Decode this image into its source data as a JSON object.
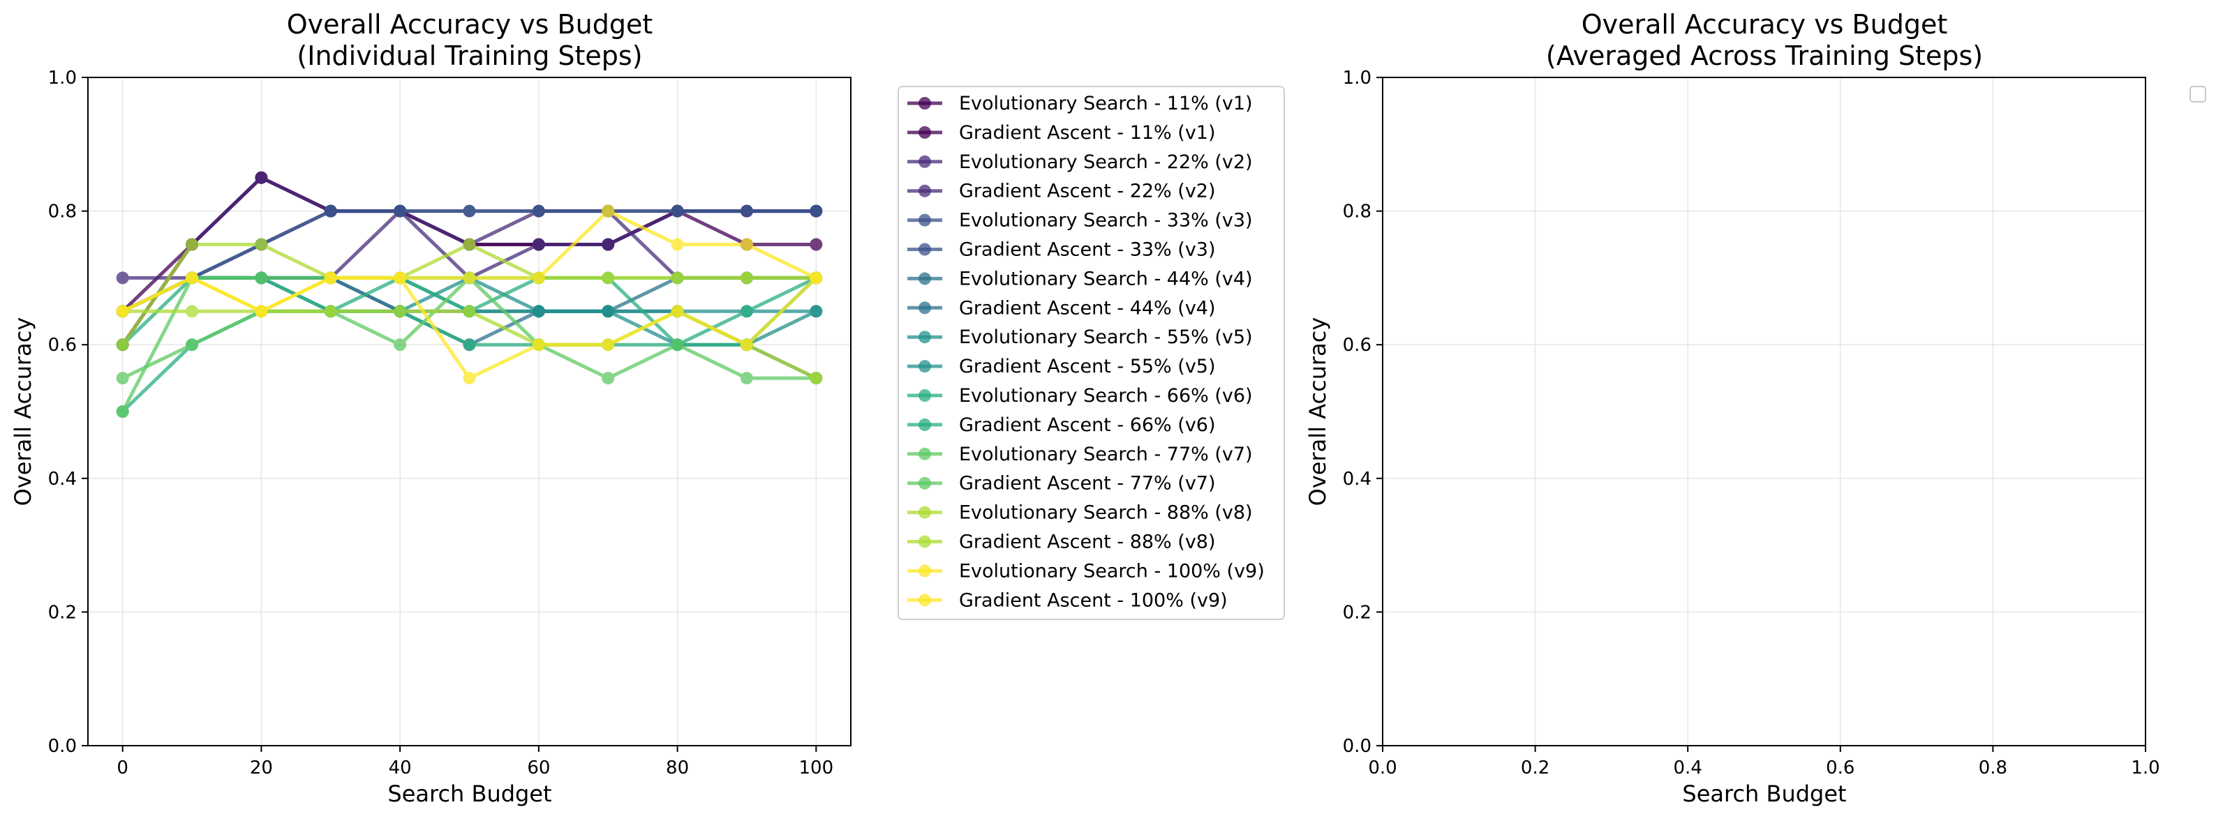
{
  "chart_data": [
    {
      "type": "line",
      "title_lines": [
        "Overall Accuracy vs Budget",
        "(Individual Training Steps)"
      ],
      "xlabel": "Search Budget",
      "ylabel": "Overall Accuracy",
      "xlim": [
        -5,
        105
      ],
      "ylim": [
        0.0,
        1.0
      ],
      "xticks": [
        "0",
        "20",
        "40",
        "60",
        "80",
        "100"
      ],
      "yticks": [
        "0.0",
        "0.2",
        "0.4",
        "0.6",
        "0.8",
        "1.0"
      ],
      "grid": true,
      "legend_position": "outside right",
      "x": [
        0,
        10,
        20,
        30,
        40,
        50,
        60,
        70,
        80,
        90,
        100
      ],
      "series": [
        {
          "name": "Evolutionary Search - 11% (v1)",
          "color": "#440154",
          "values": [
            0.65,
            0.75,
            0.85,
            0.8,
            0.8,
            0.75,
            0.75,
            0.75,
            0.8,
            0.75,
            0.75
          ]
        },
        {
          "name": "Gradient Ascent - 11% (v1)",
          "color": "#440154",
          "values": [
            0.6,
            0.75,
            0.85,
            0.8,
            0.8,
            0.75,
            0.75,
            0.75,
            0.8,
            0.8,
            0.8
          ]
        },
        {
          "name": "Evolutionary Search - 22% (v2)",
          "color": "#472d7b",
          "values": [
            0.7,
            0.7,
            0.7,
            0.7,
            0.8,
            0.75,
            0.8,
            0.8,
            0.7,
            0.7,
            0.7
          ]
        },
        {
          "name": "Gradient Ascent - 22% (v2)",
          "color": "#472d7b",
          "values": [
            0.6,
            0.75,
            0.85,
            0.8,
            0.8,
            0.7,
            0.75,
            0.75,
            0.8,
            0.8,
            0.8
          ]
        },
        {
          "name": "Evolutionary Search - 33% (v3)",
          "color": "#3b528b",
          "values": [
            0.65,
            0.7,
            0.75,
            0.8,
            0.8,
            0.8,
            0.8,
            0.8,
            0.8,
            0.8,
            0.8
          ]
        },
        {
          "name": "Gradient Ascent - 33% (v3)",
          "color": "#3b528b",
          "values": [
            0.65,
            0.7,
            0.75,
            0.8,
            0.8,
            0.8,
            0.8,
            0.8,
            0.8,
            0.8,
            0.8
          ]
        },
        {
          "name": "Evolutionary Search - 44% (v4)",
          "color": "#2c728e",
          "values": [
            0.65,
            0.7,
            0.7,
            0.7,
            0.65,
            0.65,
            0.65,
            0.65,
            0.7,
            0.7,
            0.7
          ]
        },
        {
          "name": "Gradient Ascent - 44% (v4)",
          "color": "#2c728e",
          "values": [
            0.65,
            0.7,
            0.7,
            0.7,
            0.65,
            0.6,
            0.65,
            0.65,
            0.65,
            0.6,
            0.55
          ]
        },
        {
          "name": "Evolutionary Search - 55% (v5)",
          "color": "#21918c",
          "values": [
            0.65,
            0.7,
            0.7,
            0.65,
            0.65,
            0.7,
            0.65,
            0.65,
            0.65,
            0.65,
            0.65
          ]
        },
        {
          "name": "Gradient Ascent - 55% (v5)",
          "color": "#21918c",
          "values": [
            0.65,
            0.7,
            0.7,
            0.7,
            0.7,
            0.65,
            0.65,
            0.65,
            0.6,
            0.6,
            0.65
          ]
        },
        {
          "name": "Evolutionary Search - 66% (v6)",
          "color": "#28ae80",
          "values": [
            0.6,
            0.7,
            0.7,
            0.65,
            0.7,
            0.65,
            0.7,
            0.7,
            0.6,
            0.65,
            0.7
          ]
        },
        {
          "name": "Gradient Ascent - 66% (v6)",
          "color": "#28ae80",
          "values": [
            0.5,
            0.6,
            0.65,
            0.65,
            0.65,
            0.6,
            0.6,
            0.6,
            0.6,
            0.6,
            0.7
          ]
        },
        {
          "name": "Evolutionary Search - 77% (v7)",
          "color": "#5ec962",
          "values": [
            0.5,
            0.7,
            0.7,
            0.7,
            0.7,
            0.7,
            0.7,
            0.7,
            0.7,
            0.7,
            0.7
          ]
        },
        {
          "name": "Gradient Ascent - 77% (v7)",
          "color": "#5ec962",
          "values": [
            0.55,
            0.6,
            0.65,
            0.65,
            0.6,
            0.7,
            0.6,
            0.55,
            0.6,
            0.55,
            0.55
          ]
        },
        {
          "name": "Evolutionary Search - 88% (v8)",
          "color": "#addc30",
          "values": [
            0.6,
            0.75,
            0.75,
            0.7,
            0.7,
            0.75,
            0.7,
            0.7,
            0.7,
            0.7,
            0.7
          ]
        },
        {
          "name": "Gradient Ascent - 88% (v8)",
          "color": "#addc30",
          "values": [
            0.65,
            0.65,
            0.65,
            0.65,
            0.65,
            0.65,
            0.6,
            0.6,
            0.65,
            0.6,
            0.55
          ]
        },
        {
          "name": "Evolutionary Search - 100% (v9)",
          "color": "#fde725",
          "values": [
            0.65,
            0.7,
            0.65,
            0.7,
            0.7,
            0.55,
            0.6,
            0.6,
            0.65,
            0.6,
            0.7
          ]
        },
        {
          "name": "Gradient Ascent - 100% (v9)",
          "color": "#fde725",
          "values": [
            0.65,
            0.7,
            0.65,
            0.7,
            0.7,
            0.7,
            0.7,
            0.8,
            0.75,
            0.75,
            0.7
          ]
        }
      ]
    },
    {
      "type": "line",
      "title_lines": [
        "Overall Accuracy vs Budget",
        "(Averaged Across Training Steps)"
      ],
      "xlabel": "Search Budget",
      "ylabel": "Overall Accuracy",
      "xlim": [
        0.0,
        1.0
      ],
      "ylim": [
        0.0,
        1.0
      ],
      "xticks": [
        "0.0",
        "0.2",
        "0.4",
        "0.6",
        "0.8",
        "1.0"
      ],
      "yticks": [
        "0.0",
        "0.2",
        "0.4",
        "0.6",
        "0.8",
        "1.0"
      ],
      "grid": true,
      "legend_position": "outside top-right (empty)",
      "series": []
    }
  ]
}
